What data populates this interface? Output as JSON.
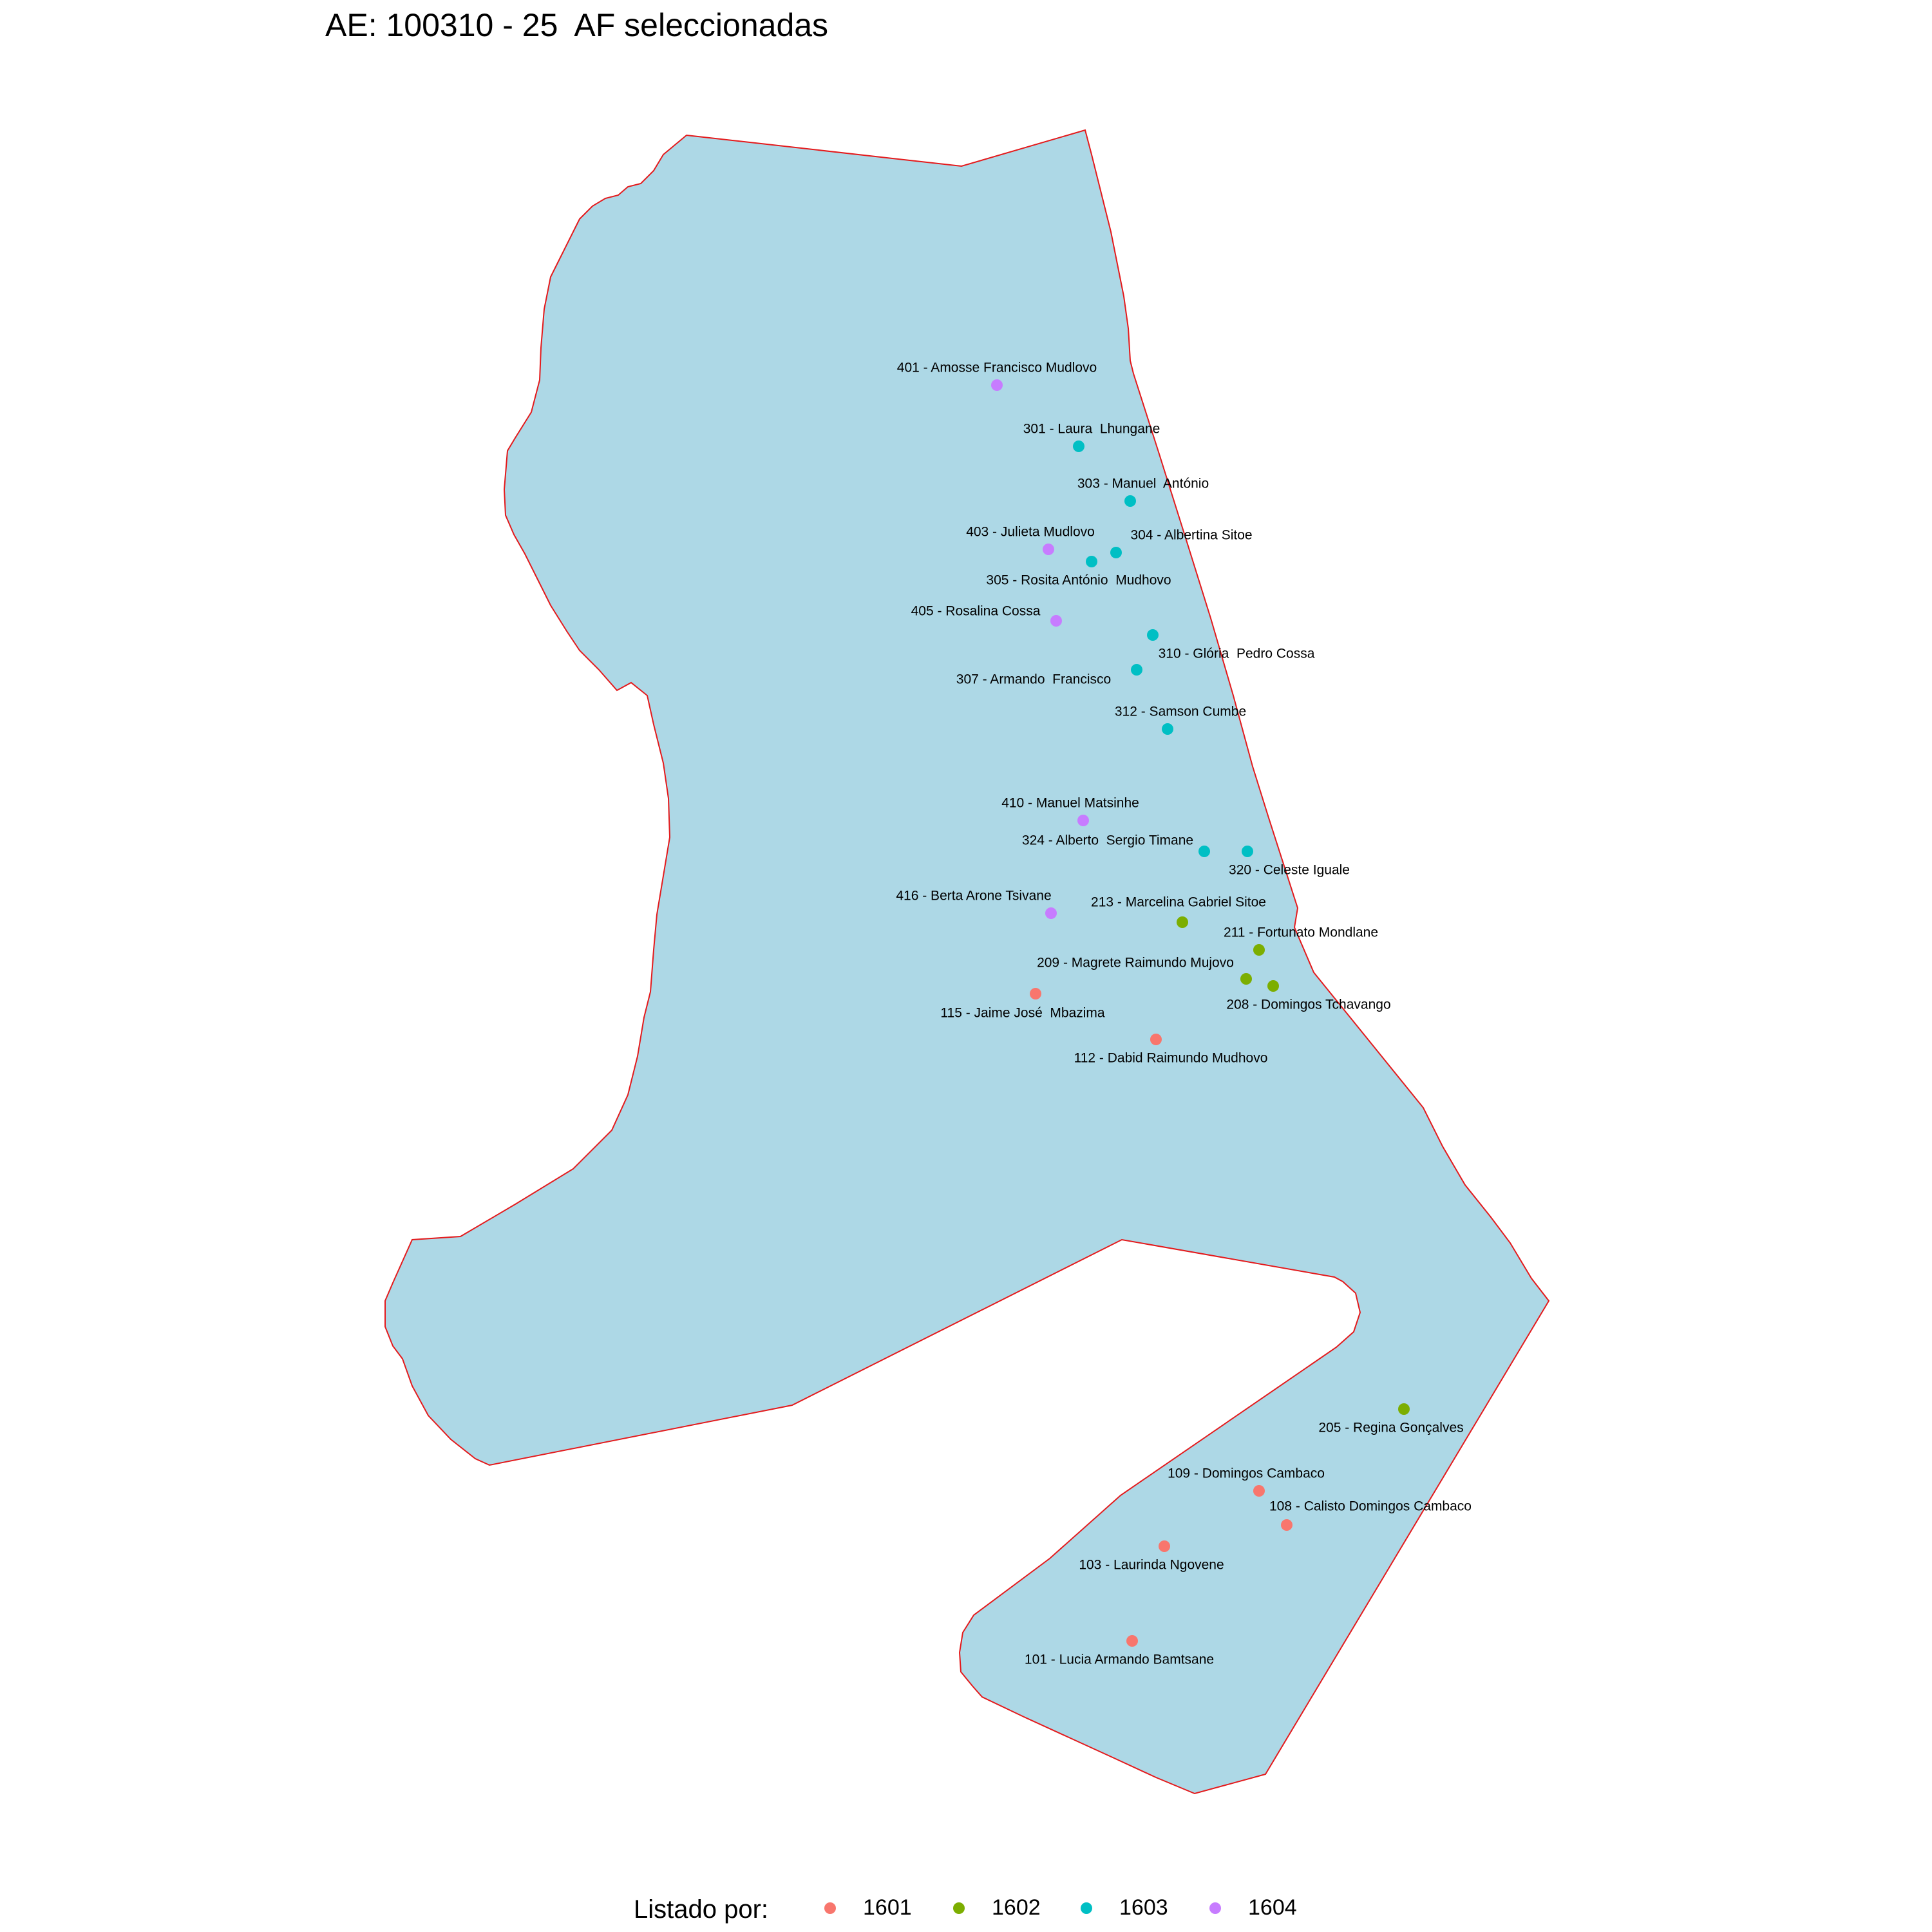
{
  "title": "AE: 100310 - 25  AF seleccionadas",
  "colors": {
    "area_fill": "#add8e6",
    "area_border": "#e41a1c",
    "1601": "#f8766d",
    "1602": "#7cae00",
    "1603": "#00bfc4",
    "1604": "#c77cff"
  },
  "legend": {
    "title": "Listado por:",
    "items": [
      {
        "key": "1601",
        "label": "1601"
      },
      {
        "key": "1602",
        "label": "1602"
      },
      {
        "key": "1603",
        "label": "1603"
      },
      {
        "key": "1604",
        "label": "1604"
      }
    ]
  },
  "households": [
    {
      "label": "401 - Amosse Francisco Mudlovo",
      "group": "1604"
    },
    {
      "label": "301 - Laura  Lhungane",
      "group": "1603"
    },
    {
      "label": "303 - Manuel  António",
      "group": "1603"
    },
    {
      "label": "403 - Julieta Mudlovo",
      "group": "1604"
    },
    {
      "label": "304 - Albertina Sitoe",
      "group": "1603"
    },
    {
      "label": "305 - Rosita António  Mudhovo",
      "group": "1603"
    },
    {
      "label": "405 - Rosalina Cossa",
      "group": "1604"
    },
    {
      "label": "310 - Glória  Pedro Cossa",
      "group": "1603"
    },
    {
      "label": "307 - Armando  Francisco",
      "group": "1603"
    },
    {
      "label": "312 - Samson Cumbe",
      "group": "1603"
    },
    {
      "label": "410 - Manuel Matsinhe",
      "group": "1604"
    },
    {
      "label": "324 - Alberto  Sergio Timane",
      "group": "1603"
    },
    {
      "label": "320 - Celeste Iguale",
      "group": "1603"
    },
    {
      "label": "416 - Berta Arone Tsivane",
      "group": "1604"
    },
    {
      "label": "213 - Marcelina Gabriel Sitoe",
      "group": "1602"
    },
    {
      "label": "211 - Fortunato Mondlane",
      "group": "1602"
    },
    {
      "label": "209 - Magrete Raimundo Mujovo",
      "group": "1602"
    },
    {
      "label": "208 - Domingos Tchavango",
      "group": "1602"
    },
    {
      "label": "115 - Jaime José  Mbazima",
      "group": "1601"
    },
    {
      "label": "112 - Dabid Raimundo Mudhovo",
      "group": "1601"
    },
    {
      "label": "205 - Regina Gonçalves",
      "group": "1602"
    },
    {
      "label": "109 - Domingos Cambaco",
      "group": "1601"
    },
    {
      "label": "108 - Calisto Domingos Cambaco",
      "group": "1601"
    },
    {
      "label": "103 - Laurinda Ngovene",
      "group": "1601"
    },
    {
      "label": "101 - Lucia Armando Bamtsane",
      "group": "1601"
    }
  ]
}
